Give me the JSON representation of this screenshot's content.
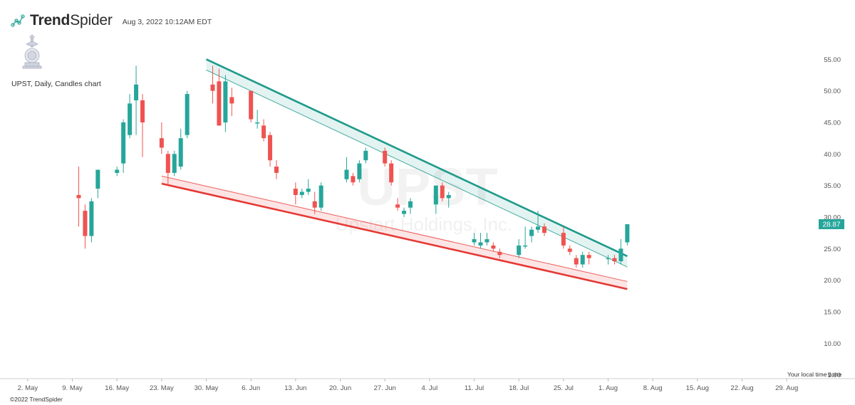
{
  "header": {
    "brand_bold": "Trend",
    "brand_light": "Spider",
    "timestamp": "Aug 3, 2022 10:12AM EDT"
  },
  "chart_label": "UPST, Daily, Candles chart",
  "footer": "©2022 TrendSpider",
  "timezone_note": "Your local time zone",
  "colors": {
    "up": "#26a69a",
    "down": "#ef5350",
    "resistance": "#1e9a8a",
    "support": "#e53935",
    "price_tag": "#26a69a"
  },
  "chart_data": {
    "type": "candlestick",
    "ticker": "UPST",
    "watermark_symbol": "UPST",
    "watermark_name": "Upstart Holdings, Inc.",
    "x_axis": {
      "labels": [
        "2. May",
        "9. May",
        "16. May",
        "23. May",
        "30. May",
        "6. Jun",
        "13. Jun",
        "20. Jun",
        "27. Jun",
        "4. Jul",
        "11. Jul",
        "18. Jul",
        "25. Jul",
        "1. Aug",
        "8. Aug",
        "15. Aug",
        "22. Aug",
        "29. Aug"
      ],
      "start": "2022-04-29",
      "end": "2022-09-02"
    },
    "y_axis": {
      "ticks": [
        "5.00",
        "10.00",
        "15.00",
        "20.00",
        "25.00",
        "30.00",
        "35.00",
        "40.00",
        "45.00",
        "50.00",
        "55.00"
      ],
      "tick_values": [
        5,
        10,
        15,
        20,
        25,
        30,
        35,
        40,
        45,
        50,
        55
      ],
      "range": [
        4.4,
        56.5
      ],
      "position": "right"
    },
    "last_price": "28.87",
    "candles": [
      {
        "date": "2022-05-10",
        "open": 33.5,
        "high": 38.0,
        "low": 28.5,
        "close": 33.0
      },
      {
        "date": "2022-05-11",
        "open": 31.0,
        "high": 32.0,
        "low": 25.0,
        "close": 27.0
      },
      {
        "date": "2022-05-12",
        "open": 27.0,
        "high": 33.0,
        "low": 26.0,
        "close": 32.5
      },
      {
        "date": "2022-05-13",
        "open": 34.5,
        "high": 37.5,
        "low": 33.0,
        "close": 37.5
      },
      {
        "date": "2022-05-16",
        "open": 37.0,
        "high": 38.0,
        "low": 36.5,
        "close": 37.5
      },
      {
        "date": "2022-05-17",
        "open": 38.5,
        "high": 45.5,
        "low": 37.0,
        "close": 45.0
      },
      {
        "date": "2022-05-18",
        "open": 43.0,
        "high": 49.5,
        "low": 42.5,
        "close": 48.0
      },
      {
        "date": "2022-05-19",
        "open": 48.5,
        "high": 54.0,
        "low": 43.0,
        "close": 51.0
      },
      {
        "date": "2022-05-20",
        "open": 48.5,
        "high": 49.5,
        "low": 39.5,
        "close": 45.0
      },
      {
        "date": "2022-05-23",
        "open": 42.5,
        "high": 45.0,
        "low": 40.0,
        "close": 41.0
      },
      {
        "date": "2022-05-24",
        "open": 40.0,
        "high": 40.5,
        "low": 35.0,
        "close": 37.0
      },
      {
        "date": "2022-05-25",
        "open": 37.0,
        "high": 40.5,
        "low": 36.5,
        "close": 40.0
      },
      {
        "date": "2022-05-26",
        "open": 38.0,
        "high": 44.0,
        "low": 37.5,
        "close": 42.5
      },
      {
        "date": "2022-05-27",
        "open": 43.0,
        "high": 50.0,
        "low": 42.5,
        "close": 49.5
      },
      {
        "date": "2022-05-31",
        "open": 51.0,
        "high": 54.0,
        "low": 48.0,
        "close": 50.0
      },
      {
        "date": "2022-06-01",
        "open": 51.5,
        "high": 53.5,
        "low": 44.5,
        "close": 44.5
      },
      {
        "date": "2022-06-02",
        "open": 45.0,
        "high": 52.5,
        "low": 43.5,
        "close": 51.5
      },
      {
        "date": "2022-06-03",
        "open": 49.0,
        "high": 50.5,
        "low": 46.0,
        "close": 48.0
      },
      {
        "date": "2022-06-06",
        "open": 50.0,
        "high": 50.0,
        "low": 45.0,
        "close": 45.5
      },
      {
        "date": "2022-06-07",
        "open": 45.0,
        "high": 47.0,
        "low": 44.0,
        "close": 45.0
      },
      {
        "date": "2022-06-08",
        "open": 44.5,
        "high": 45.5,
        "low": 42.0,
        "close": 42.5
      },
      {
        "date": "2022-06-09",
        "open": 43.0,
        "high": 43.5,
        "low": 38.0,
        "close": 39.0
      },
      {
        "date": "2022-06-10",
        "open": 38.0,
        "high": 39.0,
        "low": 36.0,
        "close": 37.0
      },
      {
        "date": "2022-06-13",
        "open": 34.5,
        "high": 35.5,
        "low": 32.0,
        "close": 33.5
      },
      {
        "date": "2022-06-14",
        "open": 33.5,
        "high": 34.5,
        "low": 33.0,
        "close": 34.0
      },
      {
        "date": "2022-06-15",
        "open": 34.0,
        "high": 36.0,
        "low": 33.5,
        "close": 34.5
      },
      {
        "date": "2022-06-16",
        "open": 32.5,
        "high": 34.0,
        "low": 30.5,
        "close": 31.5
      },
      {
        "date": "2022-06-17",
        "open": 31.5,
        "high": 35.5,
        "low": 31.0,
        "close": 35.0
      },
      {
        "date": "2022-06-21",
        "open": 36.0,
        "high": 39.5,
        "low": 35.5,
        "close": 37.5
      },
      {
        "date": "2022-06-22",
        "open": 36.5,
        "high": 37.0,
        "low": 35.0,
        "close": 35.5
      },
      {
        "date": "2022-06-23",
        "open": 36.0,
        "high": 39.0,
        "low": 35.5,
        "close": 38.5
      },
      {
        "date": "2022-06-24",
        "open": 39.0,
        "high": 41.0,
        "low": 38.5,
        "close": 40.5
      },
      {
        "date": "2022-06-27",
        "open": 40.5,
        "high": 41.0,
        "low": 38.0,
        "close": 38.5
      },
      {
        "date": "2022-06-28",
        "open": 38.5,
        "high": 39.0,
        "low": 35.0,
        "close": 35.5
      },
      {
        "date": "2022-06-29",
        "open": 32.0,
        "high": 33.0,
        "low": 31.0,
        "close": 31.5
      },
      {
        "date": "2022-06-30",
        "open": 30.5,
        "high": 31.5,
        "low": 30.0,
        "close": 31.0
      },
      {
        "date": "2022-07-01",
        "open": 31.5,
        "high": 33.0,
        "low": 30.5,
        "close": 32.5
      },
      {
        "date": "2022-07-05",
        "open": 32.0,
        "high": 35.0,
        "low": 30.5,
        "close": 35.0
      },
      {
        "date": "2022-07-06",
        "open": 35.0,
        "high": 35.5,
        "low": 32.5,
        "close": 33.0
      },
      {
        "date": "2022-07-07",
        "open": 33.0,
        "high": 34.0,
        "low": 31.5,
        "close": 33.5
      },
      {
        "date": "2022-07-11",
        "open": 26.0,
        "high": 27.5,
        "low": 25.5,
        "close": 26.5
      },
      {
        "date": "2022-07-12",
        "open": 25.5,
        "high": 27.5,
        "low": 25.0,
        "close": 26.0
      },
      {
        "date": "2022-07-13",
        "open": 26.0,
        "high": 27.5,
        "low": 25.5,
        "close": 26.5
      },
      {
        "date": "2022-07-14",
        "open": 25.5,
        "high": 26.0,
        "low": 24.5,
        "close": 25.0
      },
      {
        "date": "2022-07-15",
        "open": 24.5,
        "high": 25.0,
        "low": 23.5,
        "close": 24.0
      },
      {
        "date": "2022-07-18",
        "open": 24.0,
        "high": 26.5,
        "low": 23.5,
        "close": 25.5
      },
      {
        "date": "2022-07-19",
        "open": 25.5,
        "high": 28.5,
        "low": 25.0,
        "close": 25.5
      },
      {
        "date": "2022-07-20",
        "open": 27.0,
        "high": 28.5,
        "low": 26.0,
        "close": 28.0
      },
      {
        "date": "2022-07-21",
        "open": 28.0,
        "high": 31.0,
        "low": 27.5,
        "close": 28.5
      },
      {
        "date": "2022-07-22",
        "open": 28.5,
        "high": 29.0,
        "low": 27.0,
        "close": 27.5
      },
      {
        "date": "2022-07-25",
        "open": 27.5,
        "high": 28.5,
        "low": 25.0,
        "close": 25.5
      },
      {
        "date": "2022-07-26",
        "open": 25.0,
        "high": 25.5,
        "low": 24.0,
        "close": 24.5
      },
      {
        "date": "2022-07-27",
        "open": 23.5,
        "high": 24.0,
        "low": 22.0,
        "close": 22.5
      },
      {
        "date": "2022-07-28",
        "open": 22.5,
        "high": 24.5,
        "low": 22.0,
        "close": 24.0
      },
      {
        "date": "2022-07-29",
        "open": 24.0,
        "high": 24.5,
        "low": 22.5,
        "close": 23.5
      },
      {
        "date": "2022-08-01",
        "open": 23.5,
        "high": 24.0,
        "low": 22.5,
        "close": 23.5
      },
      {
        "date": "2022-08-02",
        "open": 23.5,
        "high": 24.0,
        "low": 22.5,
        "close": 23.0
      },
      {
        "date": "2022-08-03",
        "open": 23.0,
        "high": 26.5,
        "low": 22.5,
        "close": 25.0
      },
      {
        "date": "2022-08-04",
        "open": 26.0,
        "high": 28.87,
        "low": 25.5,
        "close": 28.87
      }
    ],
    "trendlines": [
      {
        "name": "resistance",
        "start": {
          "date": "2022-05-30",
          "value": 55.0
        },
        "end": {
          "date": "2022-08-04",
          "value": 23.8
        },
        "band_offset": 1.7
      },
      {
        "name": "support",
        "start": {
          "date": "2022-05-23",
          "value": 35.3
        },
        "end": {
          "date": "2022-08-04",
          "value": 18.6
        },
        "band_offset": 1.2
      }
    ]
  }
}
